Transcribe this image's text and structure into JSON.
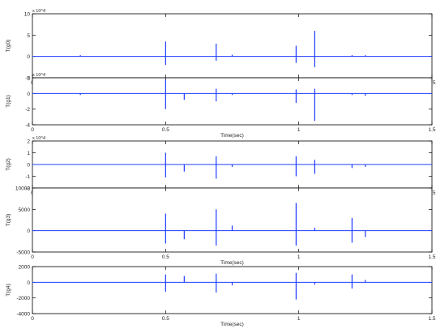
{
  "chart_data": [
    {
      "type": "line",
      "ylabel": "T(g0)",
      "xlabel": "Time(sec)",
      "exponent": "x 10^4",
      "xlim": [
        0,
        1.5
      ],
      "ylim": [
        -5,
        10
      ],
      "xticks": [
        "0",
        "0.5",
        "1",
        "1.5"
      ],
      "yticks": [
        "-5",
        "0",
        "5",
        "10"
      ],
      "ytick_values": [
        -5,
        0,
        5,
        10
      ],
      "series": [
        {
          "color": "#1f3cff",
          "spikes": [
            [
              0.18,
              0.3
            ],
            [
              0.5,
              3.5
            ],
            [
              0.5,
              -2
            ],
            [
              0.69,
              3
            ],
            [
              0.69,
              -1
            ],
            [
              0.75,
              0.4
            ],
            [
              0.99,
              2.5
            ],
            [
              0.99,
              -1.5
            ],
            [
              1.06,
              6
            ],
            [
              1.06,
              -2.5
            ],
            [
              1.2,
              0.3
            ],
            [
              1.25,
              0.3
            ]
          ]
        }
      ]
    },
    {
      "type": "line",
      "ylabel": "T(g1)",
      "xlabel": "Time(sec)",
      "exponent": "x 10^4",
      "xlim": [
        0,
        1.5
      ],
      "ylim": [
        -4,
        2
      ],
      "xticks": [
        "0",
        "0.5",
        "1",
        "1.5"
      ],
      "yticks": [
        "-4",
        "-2",
        "0",
        "2"
      ],
      "ytick_values": [
        -4,
        -2,
        0,
        2
      ],
      "series": [
        {
          "color": "#1f3cff",
          "spikes": [
            [
              0.18,
              -0.2
            ],
            [
              0.5,
              1.8
            ],
            [
              0.5,
              -2
            ],
            [
              0.57,
              -0.8
            ],
            [
              0.69,
              0.6
            ],
            [
              0.69,
              -1
            ],
            [
              0.75,
              -0.2
            ],
            [
              0.99,
              0.5
            ],
            [
              0.99,
              -1.2
            ],
            [
              1.06,
              0.6
            ],
            [
              1.06,
              -3.5
            ],
            [
              1.2,
              -0.2
            ],
            [
              1.25,
              -0.3
            ]
          ]
        }
      ]
    },
    {
      "type": "line",
      "ylabel": "T(g2)",
      "xlabel": "Time(sec)",
      "exponent": "x 10^4",
      "xlim": [
        0,
        1.5
      ],
      "ylim": [
        -2,
        2
      ],
      "xticks": [
        "0",
        "0.5",
        "1",
        "1.5"
      ],
      "yticks": [
        "-2",
        "-1",
        "0",
        "1",
        "2"
      ],
      "ytick_values": [
        -2,
        -1,
        0,
        1,
        2
      ],
      "series": [
        {
          "color": "#1f3cff",
          "spikes": [
            [
              0.5,
              1.0
            ],
            [
              0.5,
              -1.1
            ],
            [
              0.57,
              -0.6
            ],
            [
              0.69,
              0.7
            ],
            [
              0.69,
              -1.2
            ],
            [
              0.75,
              -0.2
            ],
            [
              0.99,
              0.7
            ],
            [
              0.99,
              -1.0
            ],
            [
              1.06,
              0.4
            ],
            [
              1.06,
              -0.8
            ],
            [
              1.2,
              -0.3
            ],
            [
              1.25,
              -0.2
            ]
          ]
        }
      ]
    },
    {
      "type": "line",
      "ylabel": "T(g3)",
      "xlabel": "Time(sec)",
      "exponent": "",
      "xlim": [
        0,
        1.5
      ],
      "ylim": [
        -5000,
        10000
      ],
      "xticks": [
        "0",
        "0.5",
        "1",
        "1.5"
      ],
      "yticks": [
        "-5000",
        "0",
        "5000",
        "10000"
      ],
      "ytick_values": [
        -5000,
        0,
        5000,
        10000
      ],
      "series": [
        {
          "color": "#1f3cff",
          "spikes": [
            [
              0.5,
              4000
            ],
            [
              0.5,
              -3000
            ],
            [
              0.57,
              -2000
            ],
            [
              0.69,
              5000
            ],
            [
              0.69,
              -3500
            ],
            [
              0.75,
              1200
            ],
            [
              0.99,
              6500
            ],
            [
              0.99,
              -3500
            ],
            [
              1.06,
              700
            ],
            [
              1.2,
              3000
            ],
            [
              1.2,
              -2800
            ],
            [
              1.25,
              -1500
            ]
          ]
        }
      ]
    },
    {
      "type": "line",
      "ylabel": "T(g4)",
      "xlabel": "Time(sec)",
      "exponent": "",
      "xlim": [
        0,
        1.5
      ],
      "ylim": [
        -4000,
        2000
      ],
      "xticks": [
        "0",
        "0.5",
        "1",
        "1.5"
      ],
      "yticks": [
        "-4000",
        "-2000",
        "0",
        "2000"
      ],
      "ytick_values": [
        -4000,
        -2000,
        0,
        2000
      ],
      "series": [
        {
          "color": "#1f3cff",
          "spikes": [
            [
              0.5,
              1000
            ],
            [
              0.5,
              -1200
            ],
            [
              0.57,
              800
            ],
            [
              0.69,
              1100
            ],
            [
              0.69,
              -1300
            ],
            [
              0.75,
              -400
            ],
            [
              0.99,
              1200
            ],
            [
              0.99,
              -2200
            ],
            [
              1.06,
              -300
            ],
            [
              1.2,
              1000
            ],
            [
              1.2,
              -800
            ],
            [
              1.25,
              300
            ]
          ]
        }
      ]
    }
  ]
}
